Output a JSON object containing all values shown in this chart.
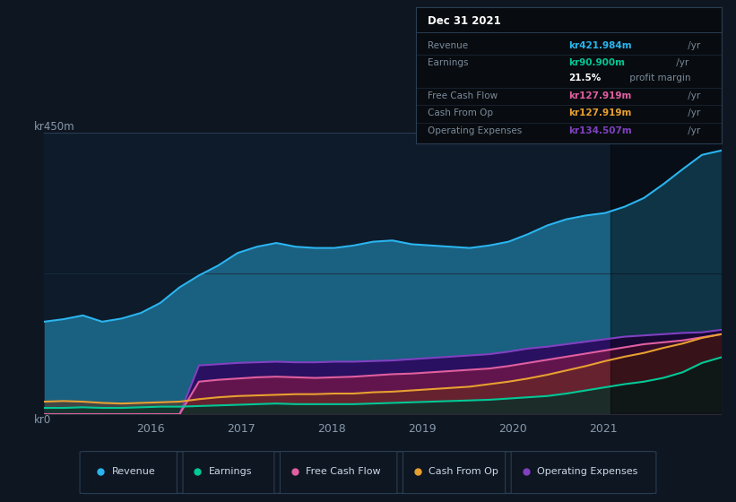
{
  "bg_color": "#0e1621",
  "plot_bg_color": "#0d1b2a",
  "ylabel_top": "kr450m",
  "ylabel_bottom": "kr0",
  "ylim": [
    0,
    450
  ],
  "xlim_start": 2014.83,
  "xlim_end": 2022.3,
  "x_ticks": [
    2016,
    2017,
    2018,
    2019,
    2020,
    2021
  ],
  "series": {
    "Revenue": {
      "color": "#2ab5f0",
      "values": [
        148,
        152,
        158,
        148,
        153,
        162,
        178,
        203,
        222,
        238,
        258,
        268,
        274,
        268,
        266,
        266,
        270,
        276,
        278,
        272,
        270,
        268,
        266,
        270,
        276,
        288,
        302,
        312,
        318,
        322,
        332,
        346,
        368,
        392,
        415,
        422
      ]
    },
    "Earnings": {
      "color": "#00c896",
      "values": [
        10,
        10,
        11,
        10,
        10,
        11,
        12,
        12,
        13,
        14,
        15,
        16,
        17,
        16,
        16,
        16,
        16,
        17,
        18,
        19,
        20,
        21,
        22,
        23,
        25,
        27,
        29,
        33,
        38,
        43,
        48,
        52,
        58,
        67,
        82,
        91
      ]
    },
    "Free Cash Flow": {
      "color": "#e05fa0",
      "values": [
        0,
        0,
        0,
        0,
        0,
        0,
        0,
        0,
        52,
        55,
        57,
        59,
        60,
        59,
        58,
        59,
        60,
        62,
        64,
        65,
        67,
        69,
        71,
        73,
        77,
        82,
        87,
        92,
        97,
        102,
        107,
        112,
        115,
        118,
        123,
        128
      ]
    },
    "Cash From Op": {
      "color": "#e8a030",
      "values": [
        20,
        21,
        20,
        18,
        17,
        18,
        19,
        20,
        24,
        27,
        29,
        30,
        31,
        32,
        32,
        33,
        33,
        35,
        36,
        38,
        40,
        42,
        44,
        48,
        52,
        57,
        63,
        70,
        77,
        85,
        92,
        98,
        106,
        113,
        122,
        128
      ]
    },
    "Operating Expenses": {
      "color": "#8040c0",
      "values": [
        0,
        0,
        0,
        0,
        0,
        0,
        0,
        0,
        78,
        80,
        82,
        83,
        84,
        83,
        83,
        84,
        84,
        85,
        86,
        88,
        90,
        92,
        94,
        96,
        100,
        105,
        108,
        112,
        116,
        120,
        124,
        126,
        128,
        130,
        131,
        135
      ]
    }
  },
  "highlight_x_start": 2021.08,
  "highlight_x_end": 2022.3,
  "info_box": {
    "title": "Dec 31 2021",
    "rows": [
      {
        "label": "Revenue",
        "value": "kr421.984m",
        "value_color": "#2ab5f0",
        "unit": " /yr",
        "divider": true
      },
      {
        "label": "Earnings",
        "value": "kr90.900m",
        "value_color": "#00c896",
        "unit": " /yr",
        "divider": false
      },
      {
        "label": "",
        "value": "21.5%",
        "value_color": "#ffffff",
        "unit": " profit margin",
        "divider": true
      },
      {
        "label": "Free Cash Flow",
        "value": "kr127.919m",
        "value_color": "#e05fa0",
        "unit": " /yr",
        "divider": true
      },
      {
        "label": "Cash From Op",
        "value": "kr127.919m",
        "value_color": "#e8a030",
        "unit": " /yr",
        "divider": true
      },
      {
        "label": "Operating Expenses",
        "value": "kr134.507m",
        "value_color": "#8040c0",
        "unit": " /yr",
        "divider": false
      }
    ]
  },
  "legend": [
    {
      "label": "Revenue",
      "color": "#2ab5f0"
    },
    {
      "label": "Earnings",
      "color": "#00c896"
    },
    {
      "label": "Free Cash Flow",
      "color": "#e05fa0"
    },
    {
      "label": "Cash From Op",
      "color": "#e8a030"
    },
    {
      "label": "Operating Expenses",
      "color": "#8040c0"
    }
  ]
}
